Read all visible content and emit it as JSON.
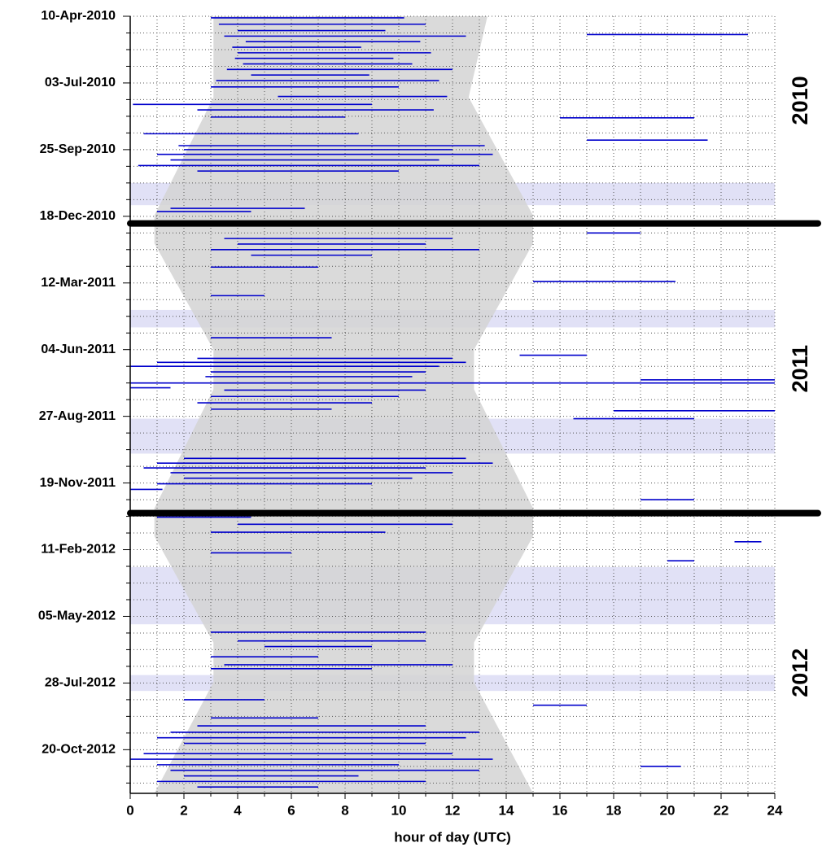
{
  "chart_data": {
    "type": "actogram",
    "xlabel": "hour of day (UTC)",
    "xlim": [
      0,
      24
    ],
    "xticks": [
      0,
      2,
      4,
      6,
      8,
      10,
      12,
      14,
      16,
      18,
      20,
      22,
      24
    ],
    "ylim": [
      "2010-04-10",
      "2012-12-14"
    ],
    "yticks": [
      {
        "value": "2010-04-10",
        "label": "10-Apr-2010"
      },
      {
        "value": "2010-07-03",
        "label": "03-Jul-2010"
      },
      {
        "value": "2010-09-25",
        "label": "25-Sep-2010"
      },
      {
        "value": "2010-12-18",
        "label": "18-Dec-2010"
      },
      {
        "value": "2011-03-12",
        "label": "12-Mar-2011"
      },
      {
        "value": "2011-06-04",
        "label": "04-Jun-2011"
      },
      {
        "value": "2011-08-27",
        "label": "27-Aug-2011"
      },
      {
        "value": "2011-11-19",
        "label": "19-Nov-2011"
      },
      {
        "value": "2012-02-11",
        "label": "11-Feb-2012"
      },
      {
        "value": "2012-05-05",
        "label": "05-May-2012"
      },
      {
        "value": "2012-07-28",
        "label": "28-Jul-2012"
      },
      {
        "value": "2012-10-20",
        "label": "20-Oct-2012"
      }
    ],
    "grid": true,
    "minor_grid": true,
    "color": "#0000cc",
    "dates": [
      "2010-04-12",
      "2010-04-20",
      "2010-04-28",
      "2010-05-03",
      "2010-05-05",
      "2010-05-12",
      "2010-05-19",
      "2010-05-26",
      "2010-06-02",
      "2010-06-09",
      "2010-06-16",
      "2010-06-23",
      "2010-06-30",
      "2010-07-08",
      "2010-07-20",
      "2010-07-30",
      "2010-08-06",
      "2010-08-15",
      "2010-08-16",
      "2010-09-05",
      "2010-09-13",
      "2010-09-20",
      "2010-09-25",
      "2010-10-01",
      "2010-10-08",
      "2010-10-15",
      "2010-10-22",
      "2010-12-08",
      "2010-12-12",
      "2011-01-08",
      "2011-01-15",
      "2011-01-22",
      "2011-01-29",
      "2011-02-05",
      "2011-02-20",
      "2011-03-10",
      "2011-03-28",
      "2011-05-20",
      "2011-06-11",
      "2011-06-15",
      "2011-06-20",
      "2011-06-25",
      "2011-07-02",
      "2011-07-08",
      "2011-07-12",
      "2011-07-16",
      "2011-07-22",
      "2011-07-25",
      "2011-08-02",
      "2011-08-10",
      "2011-08-18",
      "2011-08-20",
      "2011-08-30",
      "2011-10-19",
      "2011-10-25",
      "2011-10-31",
      "2011-11-06",
      "2011-11-13",
      "2011-11-20",
      "2011-11-27",
      "2011-12-10",
      "2012-01-01",
      "2012-01-10",
      "2012-01-20",
      "2012-02-01",
      "2012-02-15",
      "2012-02-25",
      "2012-05-25",
      "2012-06-05",
      "2012-06-12",
      "2012-06-25",
      "2012-07-05",
      "2012-07-10",
      "2012-08-18",
      "2012-08-25",
      "2012-09-10",
      "2012-09-20",
      "2012-09-28",
      "2012-10-05",
      "2012-10-12",
      "2012-10-25",
      "2012-11-01",
      "2012-11-08",
      "2012-11-10",
      "2012-11-15",
      "2012-11-22",
      "2012-11-29",
      "2012-12-06"
    ],
    "starts": [
      3.0,
      3.3,
      4.0,
      17.0,
      3.5,
      4.3,
      3.8,
      4.0,
      3.9,
      4.2,
      3.6,
      4.5,
      3.2,
      3.0,
      5.5,
      0.1,
      2.5,
      3.0,
      16.0,
      0.5,
      17.0,
      1.8,
      2.0,
      1.0,
      1.5,
      0.3,
      2.5,
      1.5,
      1.0,
      17.0,
      3.5,
      4.0,
      3.0,
      4.5,
      3.0,
      15.0,
      3.0,
      3.0,
      14.5,
      2.5,
      1.0,
      0.0,
      3.0,
      2.8,
      19.0,
      0.0,
      0.0,
      3.5,
      3.0,
      2.5,
      3.0,
      18.0,
      16.5,
      2.0,
      1.0,
      0.5,
      1.5,
      2.0,
      1.0,
      0.0,
      19.0,
      1.0,
      4.0,
      3.0,
      22.5,
      3.0,
      20.0,
      3.0,
      4.0,
      5.0,
      3.0,
      3.5,
      3.0,
      2.0,
      15.0,
      3.0,
      2.5,
      1.5,
      1.0,
      2.0,
      0.5,
      0.0,
      1.0,
      19.0,
      1.5,
      2.0,
      1.0,
      2.5
    ],
    "ends": [
      10.2,
      11.0,
      9.5,
      23.0,
      12.5,
      10.8,
      8.6,
      11.2,
      9.8,
      10.5,
      12.0,
      8.9,
      11.5,
      10.0,
      11.8,
      9.0,
      11.3,
      8.0,
      21.0,
      8.5,
      21.5,
      13.2,
      12.0,
      13.5,
      11.5,
      13.0,
      10.0,
      6.5,
      4.5,
      19.0,
      12.0,
      11.0,
      13.0,
      9.0,
      7.0,
      20.3,
      5.0,
      7.5,
      17.0,
      12.0,
      12.5,
      11.5,
      11.0,
      10.5,
      24.0,
      24.0,
      1.5,
      11.0,
      10.0,
      9.0,
      7.5,
      24.0,
      21.0,
      12.5,
      13.5,
      11.0,
      12.0,
      10.5,
      9.0,
      1.2,
      21.0,
      4.5,
      12.0,
      9.5,
      23.5,
      6.0,
      21.0,
      11.0,
      11.0,
      9.0,
      7.0,
      12.0,
      9.0,
      5.0,
      17.0,
      7.0,
      11.0,
      13.0,
      12.5,
      11.0,
      12.0,
      13.5,
      10.0,
      20.5,
      13.0,
      8.5,
      11.0,
      7.0
    ],
    "shading": {
      "color": "#d3d3d3",
      "dates": [
        "2010-04-10",
        "2010-07-21",
        "2010-12-17",
        "2011-01-21",
        "2011-06-04",
        "2011-07-24",
        "2011-12-21",
        "2012-01-25",
        "2012-06-07",
        "2012-07-27",
        "2012-12-14"
      ],
      "from": [
        3.1,
        3.1,
        0.9,
        0.9,
        3.1,
        3.1,
        0.9,
        0.9,
        3.1,
        3.1,
        0.9
      ],
      "to": [
        13.3,
        12.6,
        15.0,
        15.0,
        12.8,
        12.8,
        15.0,
        15.0,
        12.8,
        12.8,
        15.0
      ]
    },
    "gaps": {
      "color": "#dcdcf5",
      "starts": [
        "2010-11-06",
        "2011-04-15",
        "2011-08-30",
        "2012-03-04",
        "2012-07-18"
      ],
      "ends": [
        "2010-12-04",
        "2011-05-07",
        "2011-10-13",
        "2012-05-15",
        "2012-08-07"
      ]
    },
    "year_breaks": [
      "2010-12-27",
      "2011-12-27"
    ],
    "year_labels": [
      {
        "text": "2010",
        "date": "2010-07-25"
      },
      {
        "text": "2011",
        "date": "2011-06-28"
      },
      {
        "text": "2012",
        "date": "2012-07-15"
      }
    ]
  }
}
